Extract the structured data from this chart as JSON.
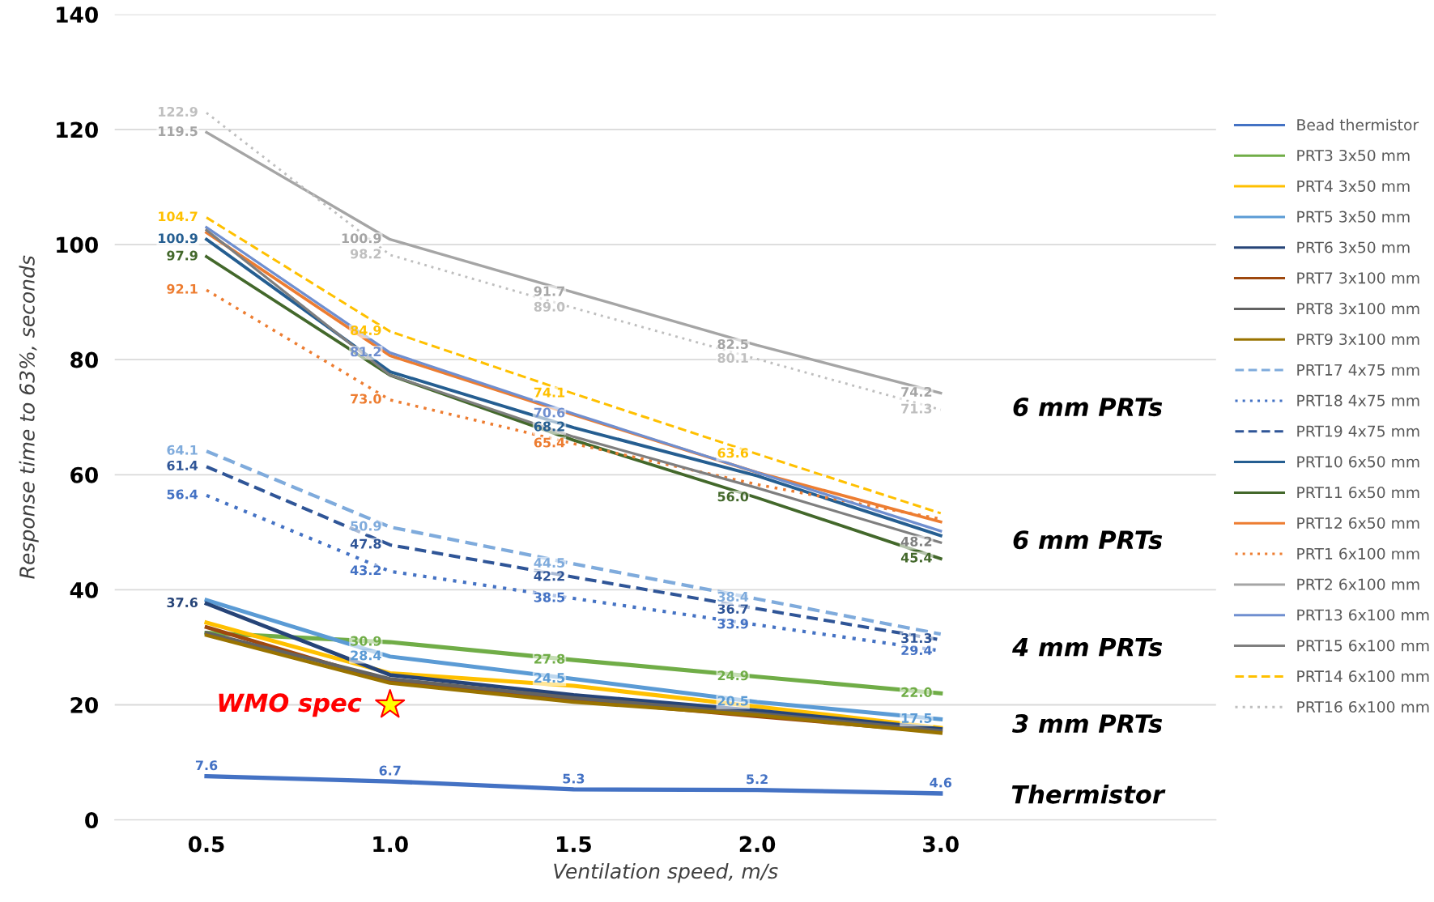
{
  "chart_data": {
    "type": "line",
    "xlabel": "Ventilation speed, m/s",
    "ylabel": "Response time to 63%, seconds",
    "categories": [
      "0.5",
      "1.0",
      "1.5",
      "2.0",
      "3.0"
    ],
    "ylim": [
      0,
      140
    ],
    "yticks": [
      0,
      20,
      40,
      60,
      80,
      100,
      120,
      140
    ],
    "grid": "y",
    "legend": "right",
    "series": [
      {
        "name": "Bead thermistor",
        "color": "#4472c4",
        "line_style": "solid",
        "values": [
          7.6,
          6.7,
          5.3,
          5.2,
          4.6
        ],
        "value_labels": [
          "7.6",
          "6.7",
          "5.3",
          "5.2",
          "4.6"
        ]
      },
      {
        "name": "PRT3 3x50 mm",
        "color": "#70ad47",
        "line_style": "solid",
        "values": [
          32.5,
          30.9,
          27.8,
          24.9,
          22.0
        ],
        "value_labels": [
          null,
          "30.9",
          "27.8",
          "24.9",
          "22.0"
        ]
      },
      {
        "name": "PRT4 3x50 mm",
        "color": "#ffc000",
        "line_style": "solid",
        "values": [
          34.3,
          25.5,
          23.3,
          19.7,
          16.0
        ]
      },
      {
        "name": "PRT5 3x50 mm",
        "color": "#5b9bd5",
        "line_style": "solid",
        "values": [
          38.2,
          28.4,
          24.5,
          20.5,
          17.5
        ],
        "value_labels": [
          null,
          "28.4",
          "24.5",
          "20.5",
          "17.5"
        ]
      },
      {
        "name": "PRT6 3x50 mm",
        "color": "#264478",
        "line_style": "solid",
        "values": [
          37.6,
          25.2,
          21.7,
          19.0,
          15.8
        ],
        "value_labels": [
          "37.6",
          null,
          null,
          null,
          null
        ]
      },
      {
        "name": "PRT7 3x100 mm",
        "color": "#9e480e",
        "line_style": "solid",
        "values": [
          33.5,
          24.0,
          20.8,
          18.0,
          15.3
        ]
      },
      {
        "name": "PRT8 3x100 mm",
        "color": "#636363",
        "line_style": "solid",
        "values": [
          32.5,
          24.5,
          21.2,
          18.5,
          15.5
        ]
      },
      {
        "name": "PRT9 3x100 mm",
        "color": "#997300",
        "line_style": "solid",
        "values": [
          32.1,
          23.8,
          20.5,
          18.2,
          15.1
        ]
      },
      {
        "name": "PRT17 4x75 mm",
        "color": "#7fabdc",
        "line_style": "dashed",
        "values": [
          64.1,
          50.9,
          44.5,
          38.4,
          32.3
        ],
        "value_labels": [
          "64.1",
          "50.9",
          "44.5",
          "38.4",
          null
        ]
      },
      {
        "name": "PRT18 4x75 mm",
        "color": "#4472c4",
        "line_style": "dotted",
        "values": [
          56.4,
          43.2,
          38.5,
          33.9,
          29.4
        ],
        "value_labels": [
          "56.4",
          "43.2",
          "38.5",
          "33.9",
          "29.4"
        ]
      },
      {
        "name": "PRT19 4x75 mm",
        "color": "#2f5597",
        "line_style": "dashed",
        "values": [
          61.4,
          47.8,
          42.2,
          36.7,
          31.3
        ],
        "value_labels": [
          "61.4",
          "47.8",
          "42.2",
          "36.7",
          "31.3"
        ]
      },
      {
        "name": "PRT10 6x50 mm",
        "color": "#255e91",
        "line_style": "solid",
        "values": [
          100.9,
          77.9,
          68.2,
          59.8,
          49.4
        ],
        "value_labels": [
          "100.9",
          null,
          "68.2",
          null,
          null
        ]
      },
      {
        "name": "PRT11 6x50 mm",
        "color": "#43682b",
        "line_style": "solid",
        "values": [
          97.9,
          77.3,
          66.0,
          56.0,
          45.4
        ],
        "value_labels": [
          "97.9",
          null,
          null,
          "56.0",
          "45.4"
        ]
      },
      {
        "name": "PRT12 6x50 mm",
        "color": "#ed7d31",
        "line_style": "solid",
        "values": [
          102.1,
          80.7,
          70.4,
          60.4,
          51.8
        ]
      },
      {
        "name": "PRT1 6x100 mm",
        "color": "#ed7d31",
        "line_style": "dotted",
        "values": [
          92.1,
          73.0,
          65.4,
          58.3,
          52.3
        ],
        "value_labels": [
          "92.1",
          "73.0",
          "65.4",
          null,
          null
        ]
      },
      {
        "name": "PRT2 6x100 mm",
        "color": "#a5a5a5",
        "line_style": "solid",
        "values": [
          119.5,
          100.9,
          91.7,
          82.5,
          74.2
        ],
        "value_labels": [
          "119.5",
          "100.9",
          "91.7",
          "82.5",
          "74.2"
        ]
      },
      {
        "name": "PRT13 6x100 mm",
        "color": "#6f8fd0",
        "line_style": "solid",
        "values": [
          103.0,
          81.2,
          70.6,
          60.4,
          50.2
        ],
        "value_labels": [
          null,
          "81.2",
          "70.6",
          null,
          null
        ]
      },
      {
        "name": "PRT15 6x100 mm",
        "color": "#7f7f7f",
        "line_style": "solid",
        "values": [
          102.5,
          77.3,
          66.6,
          57.7,
          48.2
        ],
        "value_labels": [
          null,
          null,
          null,
          null,
          "48.2"
        ]
      },
      {
        "name": "PRT14 6x100 mm",
        "color": "#ffc000",
        "line_style": "dashed",
        "values": [
          104.7,
          84.9,
          74.1,
          63.6,
          53.3
        ],
        "value_labels": [
          "104.7",
          "84.9",
          "74.1",
          "63.6",
          null
        ]
      },
      {
        "name": "PRT16 6x100 mm",
        "color": "#bfbfbf",
        "line_style": "dotted",
        "values": [
          122.9,
          98.2,
          89.0,
          80.1,
          71.3
        ],
        "value_labels": [
          "122.9",
          "98.2",
          "89.0",
          "80.1",
          "71.3"
        ]
      }
    ],
    "annotations": [
      "6 mm PRTs",
      "6 mm PRTs",
      "4 mm PRTs",
      "3 mm PRTs",
      "Thermistor",
      {
        "text": "WMO spec",
        "x": "1.0",
        "y": 20
      }
    ]
  }
}
